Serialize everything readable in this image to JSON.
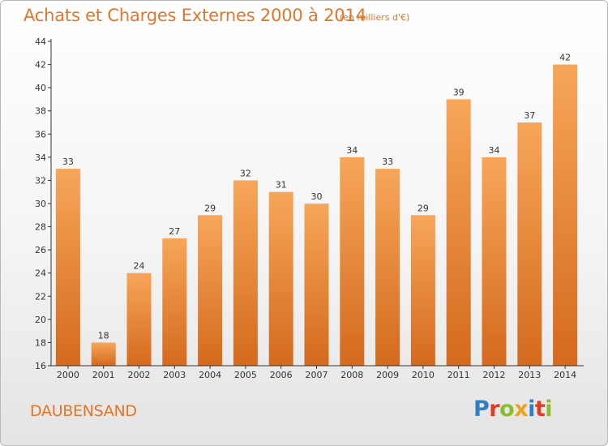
{
  "header": {
    "title": "Achats et Charges Externes 2000 à 2014",
    "unit_note": "(en milliers d'€)"
  },
  "footer": {
    "commune": "DAUBENSAND",
    "brand": "Proxiti",
    "brand_colors": [
      "#2f7fc1",
      "#e03b24",
      "#8cbc2d",
      "#f0a21e",
      "#2f7fc1",
      "#e03b24",
      "#8cbc2d"
    ]
  },
  "colors": {
    "accent": "#e2762a",
    "bar_top": "#f7a65a",
    "bar_bottom": "#d46a1d",
    "axis": "#333333",
    "grid": "#e2e2e2"
  },
  "chart_data": {
    "type": "bar",
    "categories": [
      "2000",
      "2001",
      "2002",
      "2003",
      "2004",
      "2005",
      "2006",
      "2007",
      "2008",
      "2009",
      "2010",
      "2011",
      "2012",
      "2013",
      "2014"
    ],
    "values": [
      33,
      18,
      24,
      27,
      29,
      32,
      31,
      30,
      34,
      33,
      29,
      39,
      34,
      37,
      42
    ],
    "ylim": [
      16,
      44
    ],
    "yticks": [
      16,
      18,
      20,
      22,
      24,
      26,
      28,
      30,
      32,
      34,
      36,
      38,
      40,
      42,
      44
    ],
    "data_labels": true,
    "grid": false
  }
}
